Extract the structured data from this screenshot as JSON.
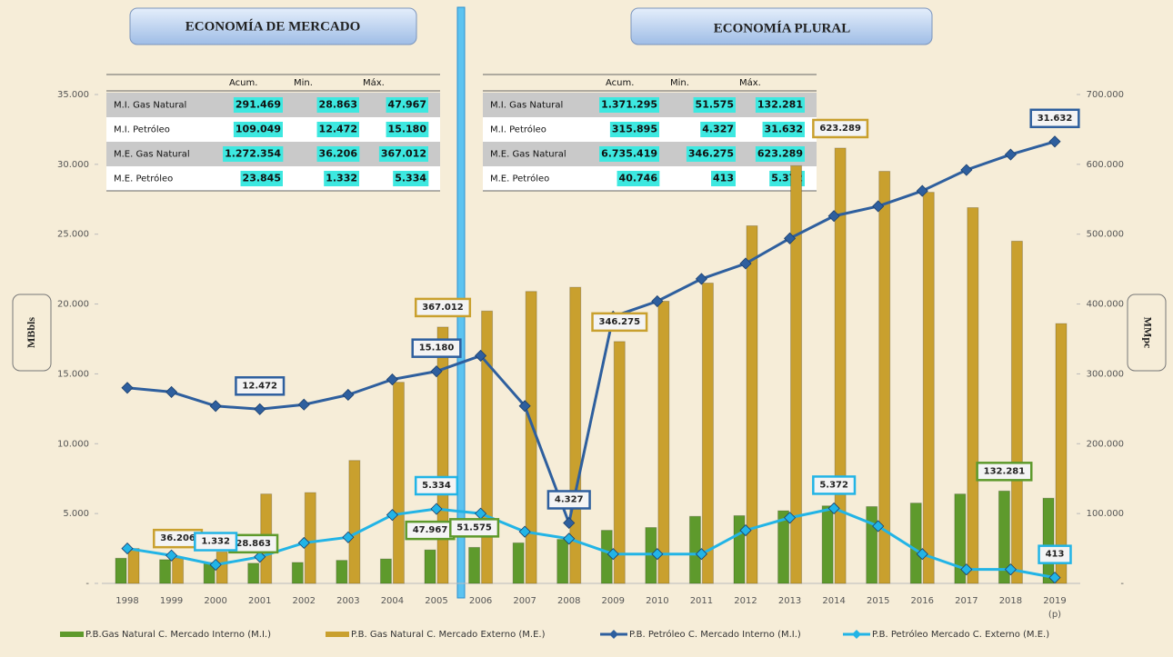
{
  "chart_data": {
    "type": "bar-line",
    "panels": [
      "ECONOMÍA DE MERCADO",
      "ECONOMÍA PLURAL"
    ],
    "ylabel": "MBbls",
    "y2label": "MMpc",
    "grid": false,
    "categories": [
      "1998",
      "1999",
      "2000",
      "2001",
      "2002",
      "2003",
      "2004",
      "2005",
      "2006",
      "2007",
      "2008",
      "2009",
      "2010",
      "2011",
      "2012",
      "2013",
      "2014",
      "2015",
      "2016",
      "2017",
      "2018",
      "2019"
    ],
    "category_note": "(p)",
    "ylim": [
      0,
      35000
    ],
    "yticks": [
      {
        "value": 0,
        "label": "-"
      },
      {
        "value": 5000,
        "label": "5.000"
      },
      {
        "value": 10000,
        "label": "10.000"
      },
      {
        "value": 15000,
        "label": "15.000"
      },
      {
        "value": 20000,
        "label": "20.000"
      },
      {
        "value": 25000,
        "label": "25.000"
      },
      {
        "value": 30000,
        "label": "30.000"
      },
      {
        "value": 35000,
        "label": "35.000"
      }
    ],
    "y2lim": [
      0,
      700000
    ],
    "y2ticks": [
      {
        "value": 0,
        "label": "-"
      },
      {
        "value": 100000,
        "label": "100.000"
      },
      {
        "value": 200000,
        "label": "200.000"
      },
      {
        "value": 300000,
        "label": "300.000"
      },
      {
        "value": 400000,
        "label": "400.000"
      },
      {
        "value": 500000,
        "label": "500.000"
      },
      {
        "value": 600000,
        "label": "600.000"
      },
      {
        "value": 700000,
        "label": "700.000"
      }
    ],
    "series": [
      {
        "name": "P.B.Gas Natural C. Mercado Interno (M.I.)",
        "kind": "bar",
        "axis": "y2",
        "color": "#5e9a2c",
        "values": [
          36000,
          34000,
          30000,
          28863,
          30000,
          33000,
          35000,
          47967,
          51575,
          58000,
          63000,
          76000,
          80000,
          96000,
          97000,
          104000,
          111000,
          110000,
          115000,
          128000,
          132281,
          122000
        ],
        "value_labels": [
          null,
          null,
          null,
          "28.863",
          null,
          null,
          null,
          "47.967",
          "51.575",
          null,
          null,
          null,
          null,
          null,
          null,
          null,
          null,
          null,
          null,
          null,
          "132.281",
          null
        ]
      },
      {
        "name": "P.B. Gas Natural C. Mercado Externo (M.E.)",
        "kind": "bar",
        "axis": "y2",
        "color": "#c9a02e",
        "values": [
          50000,
          36206,
          45000,
          128000,
          130000,
          176000,
          288000,
          367012,
          390000,
          418000,
          424000,
          346275,
          404000,
          430000,
          512000,
          598000,
          623289,
          590000,
          560000,
          538000,
          490000,
          372000
        ],
        "value_labels": [
          null,
          "36.206",
          null,
          null,
          null,
          null,
          null,
          "367.012",
          null,
          null,
          null,
          "346.275",
          null,
          null,
          null,
          null,
          "623.289",
          null,
          null,
          null,
          null,
          null
        ]
      },
      {
        "name": "P.B. Petróleo C. Mercado Interno (M.I.)",
        "kind": "line",
        "color": "#2e5f9e",
        "values": [
          14000,
          13700,
          12700,
          12472,
          12800,
          13500,
          14600,
          15180,
          16300,
          12700,
          4327,
          19100,
          20200,
          21800,
          22900,
          24700,
          26300,
          27000,
          28100,
          29600,
          30700,
          31632
        ],
        "value_labels": [
          null,
          null,
          null,
          "12.472",
          null,
          null,
          null,
          "15.180",
          null,
          null,
          "4.327",
          null,
          null,
          null,
          null,
          null,
          null,
          null,
          null,
          null,
          null,
          "31.632"
        ]
      },
      {
        "name": "P.B. Petróleo Mercado C. Externo (M.E.)",
        "kind": "line",
        "color": "#22b4e6",
        "values": [
          2500,
          2000,
          1332,
          1900,
          2900,
          3300,
          4900,
          5334,
          5000,
          3700,
          3200,
          2100,
          2100,
          2100,
          3800,
          4700,
          5372,
          4100,
          2100,
          1000,
          1000,
          413
        ],
        "value_labels": [
          null,
          null,
          "1.332",
          null,
          null,
          null,
          null,
          "5.334",
          null,
          null,
          null,
          null,
          null,
          null,
          null,
          null,
          "5.372",
          null,
          null,
          null,
          null,
          "413"
        ]
      }
    ]
  },
  "tables": [
    {
      "header": [
        "Acum.",
        "Min.",
        "Máx."
      ],
      "rows": [
        {
          "label": "M.I. Gas Natural",
          "cells": [
            "291.469",
            "28.863",
            "47.967"
          ]
        },
        {
          "label": "M.I. Petróleo",
          "cells": [
            "109.049",
            "12.472",
            "15.180"
          ]
        },
        {
          "label": "M.E. Gas Natural",
          "cells": [
            "1.272.354",
            "36.206",
            "367.012"
          ]
        },
        {
          "label": "M.E. Petróleo",
          "cells": [
            "23.845",
            "1.332",
            "5.334"
          ]
        }
      ]
    },
    {
      "header": [
        "Acum.",
        "Min.",
        "Máx."
      ],
      "rows": [
        {
          "label": "M.I. Gas Natural",
          "cells": [
            "1.371.295",
            "51.575",
            "132.281"
          ]
        },
        {
          "label": "M.I. Petróleo",
          "cells": [
            "315.895",
            "4.327",
            "31.632"
          ]
        },
        {
          "label": "M.E. Gas Natural",
          "cells": [
            "6.735.419",
            "346.275",
            "623.289"
          ]
        },
        {
          "label": "M.E. Petróleo",
          "cells": [
            "40.746",
            "413",
            "5.372"
          ]
        }
      ]
    }
  ]
}
